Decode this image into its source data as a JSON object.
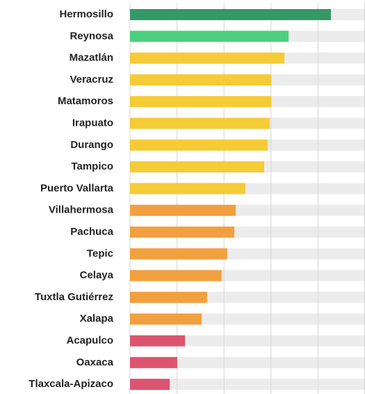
{
  "chart_data": {
    "type": "bar",
    "orientation": "horizontal",
    "categories": [
      "Hermosillo",
      "Reynosa",
      "Mazatlán",
      "Veracruz",
      "Matamoros",
      "Irapuato",
      "Durango",
      "Tampico",
      "Puerto Vallarta",
      "Villahermosa",
      "Pachuca",
      "Tepic",
      "Celaya",
      "Tuxtla Gutiérrez",
      "Xalapa",
      "Acapulco",
      "Oaxaca",
      "Tlaxcala-Apizaco"
    ],
    "values": [
      85.5,
      67.5,
      65.7,
      60.1,
      60.1,
      59.5,
      58.6,
      57.1,
      49.1,
      45,
      44.4,
      41.4,
      39,
      32.8,
      30.5,
      23.4,
      20.1,
      16.9
    ],
    "colors": [
      "#339966",
      "#4cd07d",
      "#f5cb36",
      "#f5cb36",
      "#f5cb36",
      "#f5cb36",
      "#f5cb36",
      "#f5cb36",
      "#f5cb36",
      "#f2a03f",
      "#f2a03f",
      "#f2a03f",
      "#f2a03f",
      "#f2a03f",
      "#f2a03f",
      "#dd5470",
      "#dd5470",
      "#dd5470"
    ],
    "xlim": [
      0,
      100
    ],
    "xticks": [
      0,
      20,
      40,
      60,
      80,
      100
    ],
    "grid": true,
    "track_color": "#ececec"
  }
}
